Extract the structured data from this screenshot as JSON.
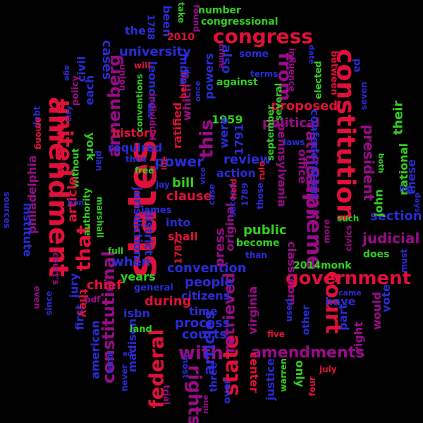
{
  "words": [
    {
      "text": "amendment",
      "color": "#e0103a",
      "weight": 5
    },
    {
      "text": "states",
      "color": "#e0103a",
      "weight": 5
    },
    {
      "text": "constitution",
      "color": "#e0103a",
      "weight": 5
    },
    {
      "text": "united",
      "color": "#e0103a",
      "weight": 4
    },
    {
      "text": "congress",
      "color": "#e0103a",
      "weight": 4
    },
    {
      "text": "court",
      "color": "#e0103a",
      "weight": 4
    },
    {
      "text": "federal",
      "color": "#e0103a",
      "weight": 4
    },
    {
      "text": "state",
      "color": "#e0103a",
      "weight": 4
    },
    {
      "text": "that",
      "color": "#e0103a",
      "weight": 4
    },
    {
      "text": "government",
      "color": "#e0103a",
      "weight": 4
    },
    {
      "text": "supreme",
      "color": "#9b0a8a",
      "weight": 4
    },
    {
      "text": "amendments",
      "color": "#9b0a8a",
      "weight": 4
    },
    {
      "text": "this",
      "color": "#9b0a8a",
      "weight": 3
    },
    {
      "text": "annenberg",
      "color": "#9b0a8a",
      "weight": 3
    },
    {
      "text": "rights",
      "color": "#9b0a8a",
      "weight": 3
    },
    {
      "text": "with",
      "color": "#9b0a8a",
      "weight": 3
    },
    {
      "text": "from",
      "color": "#9b0a8a",
      "weight": 3
    },
    {
      "text": "constitutional",
      "color": "#9b0a8a",
      "weight": 3
    },
    {
      "text": "ratification",
      "color": "#9b0a8a",
      "weight": 3
    },
    {
      "text": "president",
      "color": "#9b0a8a",
      "weight": 3
    },
    {
      "text": "retrieved",
      "color": "#9b0a8a",
      "weight": 3
    },
    {
      "text": "judicial",
      "color": "#9b0a8a",
      "weight": 3
    },
    {
      "text": "convention",
      "color": "#2b2bd6",
      "weight": 3
    },
    {
      "text": "articles",
      "color": "#2b2bd6",
      "weight": 3
    },
    {
      "text": "university",
      "color": "#2b2bd6",
      "weight": 3
    },
    {
      "text": "power",
      "color": "#2b2bd6",
      "weight": 3
    },
    {
      "text": "process",
      "color": "#2b2bd6",
      "weight": 2
    },
    {
      "text": "courts",
      "color": "#2b2bd6",
      "weight": 2
    },
    {
      "text": "people",
      "color": "#2b2bd6",
      "weight": 2
    },
    {
      "text": "section",
      "color": "#2b2bd6",
      "weight": 2
    },
    {
      "text": "review",
      "color": "#2b2bd6",
      "weight": 2
    },
    {
      "text": "action",
      "color": "#2b2bd6",
      "weight": 2
    },
    {
      "text": "clause",
      "color": "#e0103a",
      "weight": 2
    },
    {
      "text": "history",
      "color": "#e0103a",
      "weight": 2
    },
    {
      "text": "proposed",
      "color": "#e0103a",
      "weight": 2
    },
    {
      "text": "political",
      "color": "#9b0a8a",
      "weight": 2
    },
    {
      "text": "public",
      "color": "#31d020",
      "weight": 2
    },
    {
      "text": "2014monk",
      "color": "#31d020",
      "weight": 2
    },
    {
      "text": "years",
      "color": "#31d020",
      "weight": 2
    },
    {
      "text": "york",
      "color": "#31d020",
      "weight": 2
    },
    {
      "text": "first",
      "color": "#2b2bd6",
      "weight": 2
    },
    {
      "text": "jury",
      "color": "#2b2bd6",
      "weight": 2
    },
    {
      "text": "john",
      "color": "#31d020",
      "weight": 2
    },
    {
      "text": "national",
      "color": "#31d020",
      "weight": 2
    },
    {
      "text": "their",
      "color": "#31d020",
      "weight": 2
    },
    {
      "text": "these",
      "color": "#2b2bd6",
      "weight": 2
    },
    {
      "text": "vote",
      "color": "#2b2bd6",
      "weight": 2
    },
    {
      "text": "have",
      "color": "#2b2bd6",
      "weight": 2
    },
    {
      "text": "part",
      "color": "#2b2bd6",
      "weight": 2
    },
    {
      "text": "right",
      "color": "#9b0a8a",
      "weight": 2
    },
    {
      "text": "would",
      "color": "#9b0a8a",
      "weight": 2
    },
    {
      "text": "justice",
      "color": "#2b2bd6",
      "weight": 2
    },
    {
      "text": "center",
      "color": "#e0103a",
      "weight": 2
    },
    {
      "text": "only",
      "color": "#31d020",
      "weight": 2
    },
    {
      "text": "other",
      "color": "#2b2bd6",
      "weight": 2
    },
    {
      "text": "five",
      "color": "#e0103a",
      "weight": 1
    },
    {
      "text": "four",
      "color": "#e0103a",
      "weight": 1
    },
    {
      "text": "july",
      "color": "#e0103a",
      "weight": 1
    },
    {
      "text": "confederation",
      "color": "#2b2bd6",
      "weight": 2
    },
    {
      "text": "pennsylvania",
      "color": "#9b0a8a",
      "weight": 2
    },
    {
      "text": "office",
      "color": "#9b0a8a",
      "weight": 2
    },
    {
      "text": "classroom",
      "color": "#9b0a8a",
      "weight": 2
    },
    {
      "text": "virginia",
      "color": "#9b0a8a",
      "weight": 2
    },
    {
      "text": "september",
      "color": "#31d020",
      "weight": 2
    },
    {
      "text": "several",
      "color": "#31d020",
      "weight": 1
    },
    {
      "text": "elected",
      "color": "#31d020",
      "weight": 1
    },
    {
      "text": "between",
      "color": "#e0103a",
      "weight": 1
    },
    {
      "text": "influence",
      "color": "#9b0a8a",
      "weight": 1
    },
    {
      "text": "terms",
      "color": "#2b2bd6",
      "weight": 1
    },
    {
      "text": "some",
      "color": "#2b2bd6",
      "weight": 1
    },
    {
      "text": "against",
      "color": "#31d020",
      "weight": 1
    },
    {
      "text": "1959",
      "color": "#31d020",
      "weight": 2
    },
    {
      "text": "1791",
      "color": "#2b2bd6",
      "weight": 2
    },
    {
      "text": "were",
      "color": "#2b2bd6",
      "weight": 2
    },
    {
      "text": "also",
      "color": "#2b2bd6",
      "weight": 2
    },
    {
      "text": "powers",
      "color": "#2b2bd6",
      "weight": 2
    },
    {
      "text": "which",
      "color": "#9b0a8a",
      "weight": 2
    },
    {
      "text": "being",
      "color": "#e0103a",
      "weight": 1
    },
    {
      "text": "ratified",
      "color": "#e0103a",
      "weight": 2
    },
    {
      "text": "india",
      "color": "#2b2bd6",
      "weight": 2
    },
    {
      "text": "leonore",
      "color": "#2b2bd6",
      "weight": 2
    },
    {
      "text": "been",
      "color": "#2b2bd6",
      "weight": 2
    },
    {
      "text": "1788",
      "color": "#2b2bd6",
      "weight": 1
    },
    {
      "text": "2010",
      "color": "#e0103a",
      "weight": 1
    },
    {
      "text": "number",
      "color": "#31d020",
      "weight": 1
    },
    {
      "text": "congressional",
      "color": "#31d020",
      "weight": 1
    },
    {
      "text": "take",
      "color": "#31d020",
      "weight": 1
    },
    {
      "text": "found",
      "color": "#9b0a8a",
      "weight": 1
    },
    {
      "text": "crime",
      "color": "#9b0a8a",
      "weight": 1
    },
    {
      "text": "the",
      "color": "#2b2bd6",
      "weight": 2
    },
    {
      "text": "cases",
      "color": "#2b2bd6",
      "weight": 2
    },
    {
      "text": "civil",
      "color": "#2b2bd6",
      "weight": 2
    },
    {
      "text": "each",
      "color": "#2b2bd6",
      "weight": 2
    },
    {
      "text": "policy",
      "color": "#9b0a8a",
      "weight": 1
    },
    {
      "text": "will",
      "color": "#e0103a",
      "weight": 1
    },
    {
      "text": "union",
      "color": "#9b0a8a",
      "weight": 1
    },
    {
      "text": "conventions",
      "color": "#31d020",
      "weight": 1
    },
    {
      "text": "individual",
      "color": "#9b0a8a",
      "weight": 1
    },
    {
      "text": "required",
      "color": "#2b2bd6",
      "weight": 2
    },
    {
      "text": "thus",
      "color": "#2b2bd6",
      "weight": 1
    },
    {
      "text": "free",
      "color": "#31d020",
      "weight": 1
    },
    {
      "text": "plan",
      "color": "#2b2bd6",
      "weight": 1
    },
    {
      "text": "without",
      "color": "#31d020",
      "weight": 1
    },
    {
      "text": "city",
      "color": "#2b2bd6",
      "weight": 1
    },
    {
      "text": "age",
      "color": "#2b2bd6",
      "weight": 1
    },
    {
      "text": "debt",
      "color": "#2b2bd6",
      "weight": 1
    },
    {
      "text": "among",
      "color": "#e0103a",
      "weight": 1
    },
    {
      "text": "philadelphia",
      "color": "#9b0a8a",
      "weight": 2
    },
    {
      "text": "institute",
      "color": "#2b2bd6",
      "weight": 2
    },
    {
      "text": "sources",
      "color": "#2b2bd6",
      "weight": 1
    },
    {
      "text": "article",
      "color": "#e0103a",
      "weight": 2
    },
    {
      "text": "authority",
      "color": "#31d020",
      "weight": 1
    },
    {
      "text": "marshall",
      "color": "#31d020",
      "weight": 1
    },
    {
      "text": "full",
      "color": "#31d020",
      "weight": 1
    },
    {
      "text": "chief",
      "color": "#e0103a",
      "weight": 2
    },
    {
      "text": "court's",
      "color": "#9b0a8a",
      "weight": 1
    },
    {
      "text": "they",
      "color": "#e0103a",
      "weight": 2
    },
    {
      "text": "since",
      "color": "#2b2bd6",
      "weight": 1
    },
    {
      "text": "even",
      "color": "#9b0a8a",
      "weight": 1
    },
    {
      "text": "pdf",
      "color": "#9b0a8a",
      "weight": 1
    },
    {
      "text": "isbn",
      "color": "#2b2bd6",
      "weight": 2
    },
    {
      "text": "american",
      "color": "#2b2bd6",
      "weight": 2
    },
    {
      "text": "term",
      "color": "#2b2bd6",
      "weight": 1
    },
    {
      "text": "madison",
      "color": "#2b2bd6",
      "weight": 2
    },
    {
      "text": "never",
      "color": "#2b2bd6",
      "weight": 1
    },
    {
      "text": "trial",
      "color": "#9b0a8a",
      "weight": 1
    },
    {
      "text": "most",
      "color": "#2b2bd6",
      "weight": 1
    },
    {
      "text": "land",
      "color": "#31d020",
      "weight": 1
    },
    {
      "text": "general",
      "color": "#2b2bd6",
      "weight": 1
    },
    {
      "text": "citizens",
      "color": "#2b2bd6",
      "weight": 2
    },
    {
      "text": "time",
      "color": "#2b2bd6",
      "weight": 2
    },
    {
      "text": "during",
      "color": "#e0103a",
      "weight": 2
    },
    {
      "text": "when",
      "color": "#2b2bd6",
      "weight": 2
    },
    {
      "text": "james",
      "color": "#2b2bd6",
      "weight": 1
    },
    {
      "text": "jay",
      "color": "#2b2bd6",
      "weight": 1
    },
    {
      "text": "bill",
      "color": "#31d020",
      "weight": 2
    },
    {
      "text": "jurisdiction",
      "color": "#2b2bd6",
      "weight": 2
    },
    {
      "text": "district",
      "color": "#2b2bd6",
      "weight": 2
    },
    {
      "text": "into",
      "color": "#2b2bd6",
      "weight": 2
    },
    {
      "text": "shall",
      "color": "#e0103a",
      "weight": 2
    },
    {
      "text": "1787",
      "color": "#e0103a",
      "weight": 1
    },
    {
      "text": "press",
      "color": "#9b0a8a",
      "weight": 2
    },
    {
      "text": "original",
      "color": "#9b0a8a",
      "weight": 2
    },
    {
      "text": "second",
      "color": "#2b2bd6",
      "weight": 1
    },
    {
      "text": "held",
      "color": "#e0103a",
      "weight": 1
    },
    {
      "text": "case",
      "color": "#2b2bd6",
      "weight": 1
    },
    {
      "text": "1789",
      "color": "#2b2bd6",
      "weight": 1
    },
    {
      "text": "those",
      "color": "#2b2bd6",
      "weight": 1
    },
    {
      "text": "become",
      "color": "#31d020",
      "weight": 1
    },
    {
      "text": "than",
      "color": "#2b2bd6",
      "weight": 1
    },
    {
      "text": "laws",
      "color": "#2b2bd6",
      "weight": 1
    },
    {
      "text": "such",
      "color": "#31d020",
      "weight": 1
    },
    {
      "text": "does",
      "color": "#31d020",
      "weight": 1
    },
    {
      "text": "must",
      "color": "#2b2bd6",
      "weight": 1
    },
    {
      "text": "list",
      "color": "#2b2bd6",
      "weight": 1
    },
    {
      "text": "days",
      "color": "#2b2bd6",
      "weight": 1
    },
    {
      "text": "civics",
      "color": "#9b0a8a",
      "weight": 1
    },
    {
      "text": "more",
      "color": "#9b0a8a",
      "weight": 1
    },
    {
      "text": "came",
      "color": "#2b2bd6",
      "weight": 1
    },
    {
      "text": "seven",
      "color": "#2b2bd6",
      "weight": 1
    },
    {
      "text": "both",
      "color": "#31d020",
      "weight": 1
    },
    {
      "text": "date",
      "color": "#2b2bd6",
      "weight": 1
    },
    {
      "text": "hon",
      "color": "#2b2bd6",
      "weight": 1
    },
    {
      "text": "vice",
      "color": "#2b2bd6",
      "weight": 1
    },
    {
      "text": "rule",
      "color": "#e0103a",
      "weight": 1
    },
    {
      "text": "nine",
      "color": "#9b0a8a",
      "weight": 1
    },
    {
      "text": "three",
      "color": "#2b2bd6",
      "weight": 1
    },
    {
      "text": "over",
      "color": "#2b2bd6",
      "weight": 1
    },
    {
      "text": "used",
      "color": "#2b2bd6",
      "weight": 1
    },
    {
      "text": "warren",
      "color": "#31d020",
      "weight": 1
    },
    {
      "text": "life",
      "color": "#e0103a",
      "weight": 1
    },
    {
      "text": "once",
      "color": "#2b2bd6",
      "weight": 1
    },
    {
      "text": "pa",
      "color": "#2b2bd6",
      "weight": 1
    },
    {
      "text": "ann",
      "color": "#2b2bd6",
      "weight": 1
    },
    {
      "text": "ida",
      "color": "#2b2bd6",
      "weight": 1
    },
    {
      "text": "ed",
      "color": "#2b2bd6",
      "weight": 1
    }
  ]
}
